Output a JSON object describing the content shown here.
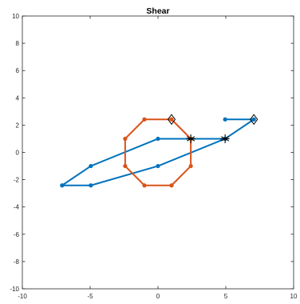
{
  "chart_data": {
    "type": "line",
    "title": "Shear",
    "xlabel": "",
    "ylabel": "",
    "xlim": [
      -10,
      10
    ],
    "ylim": [
      -10,
      10
    ],
    "xticks": [
      -10,
      -5,
      0,
      5,
      10
    ],
    "yticks": [
      -10,
      -8,
      -6,
      -4,
      -2,
      0,
      2,
      4,
      6,
      8,
      10
    ],
    "grid": false,
    "legend": "none",
    "series": [
      {
        "color": "#0072bd",
        "points": [
          [
            4.95,
            2.42
          ],
          [
            7.07,
            2.42
          ],
          [
            4.95,
            1.0
          ],
          [
            0.0,
            1.0
          ],
          [
            -4.95,
            -1.0
          ],
          [
            -7.07,
            -2.42
          ],
          [
            -4.95,
            -2.42
          ],
          [
            0.0,
            -1.0
          ],
          [
            4.95,
            1.0
          ]
        ],
        "diamond_marker": [
          7.07,
          2.42
        ],
        "star_marker": [
          4.95,
          1.0
        ]
      },
      {
        "color": "#d95319",
        "points": [
          [
            1.0,
            2.42
          ],
          [
            2.42,
            1.0
          ],
          [
            2.42,
            -1.0
          ],
          [
            1.0,
            -2.42
          ],
          [
            -1.0,
            -2.42
          ],
          [
            -2.42,
            -1.0
          ],
          [
            -2.42,
            1.0
          ],
          [
            -1.0,
            2.42
          ],
          [
            1.0,
            2.42
          ]
        ],
        "diamond_marker": [
          1.0,
          2.42
        ],
        "star_marker": [
          2.42,
          1.0
        ]
      }
    ]
  }
}
